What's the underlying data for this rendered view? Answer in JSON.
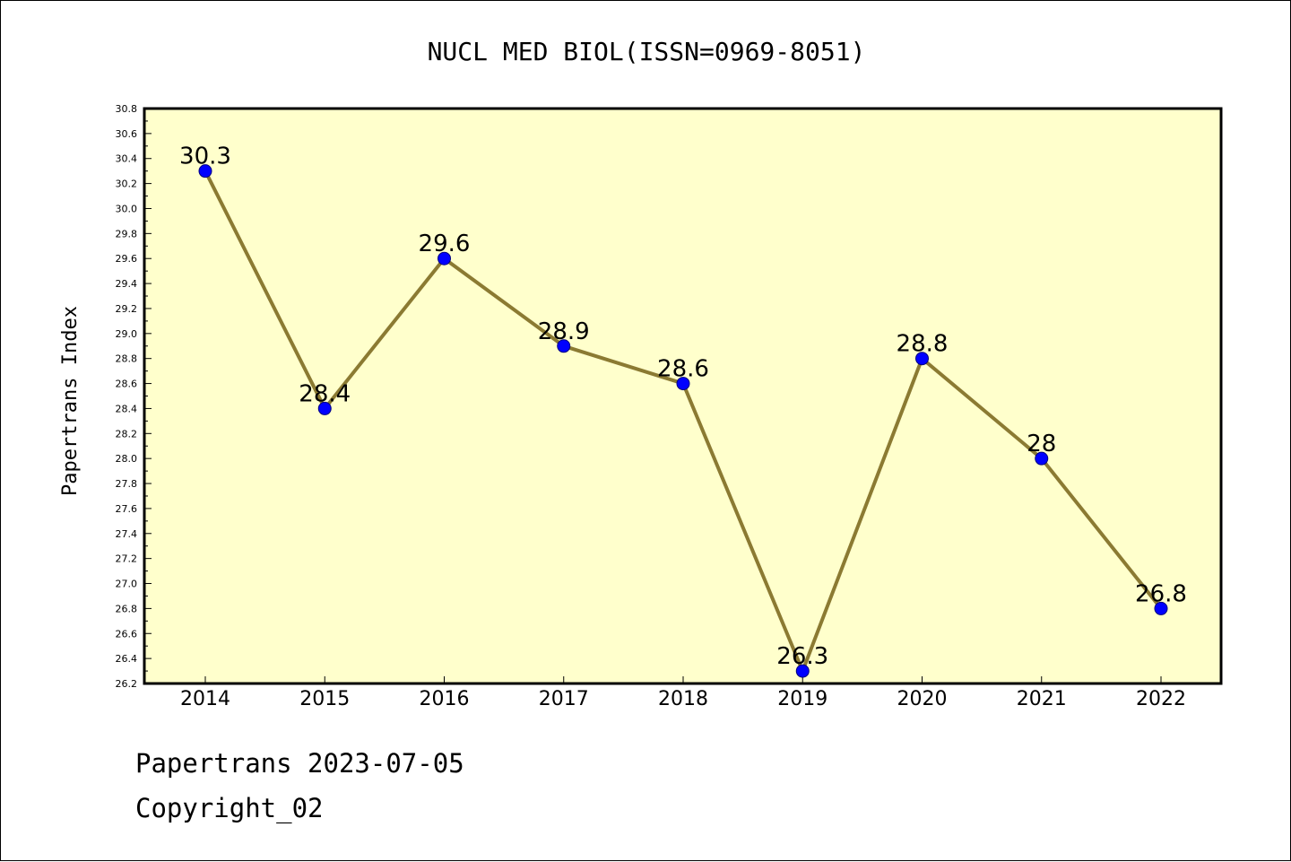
{
  "chart_data": {
    "type": "line",
    "title": "NUCL MED BIOL(ISSN=0969-8051)",
    "xlabel": "",
    "ylabel": "Papertrans Index",
    "categories": [
      "2014",
      "2015",
      "2016",
      "2017",
      "2018",
      "2019",
      "2020",
      "2021",
      "2022"
    ],
    "series": [
      {
        "values": [
          30.3,
          28.4,
          29.6,
          28.9,
          28.6,
          26.3,
          28.8,
          28.0,
          26.8
        ],
        "data_labels": [
          "30.3",
          "28.4",
          "29.6",
          "28.9",
          "28.6",
          "26.3",
          "28.8",
          "28",
          "26.8"
        ]
      }
    ],
    "ylim": [
      26.2,
      30.8
    ],
    "yticks": [
      "26.2",
      "26.4",
      "26.6",
      "26.8",
      "27.0",
      "27.2",
      "27.4",
      "27.6",
      "27.8",
      "28.0",
      "28.2",
      "28.4",
      "28.6",
      "28.8",
      "29.0",
      "29.2",
      "29.4",
      "29.6",
      "29.8",
      "30.0",
      "30.2",
      "30.4",
      "30.6",
      "30.8"
    ],
    "grid": false,
    "legend": "none",
    "colors": {
      "plot_background": "#ffffcc",
      "line": "#8b7a32",
      "marker": "#0000ff",
      "axis": "#000000"
    }
  },
  "footer": {
    "line1": "Papertrans 2023-07-05",
    "line2": "Copyright_02"
  }
}
